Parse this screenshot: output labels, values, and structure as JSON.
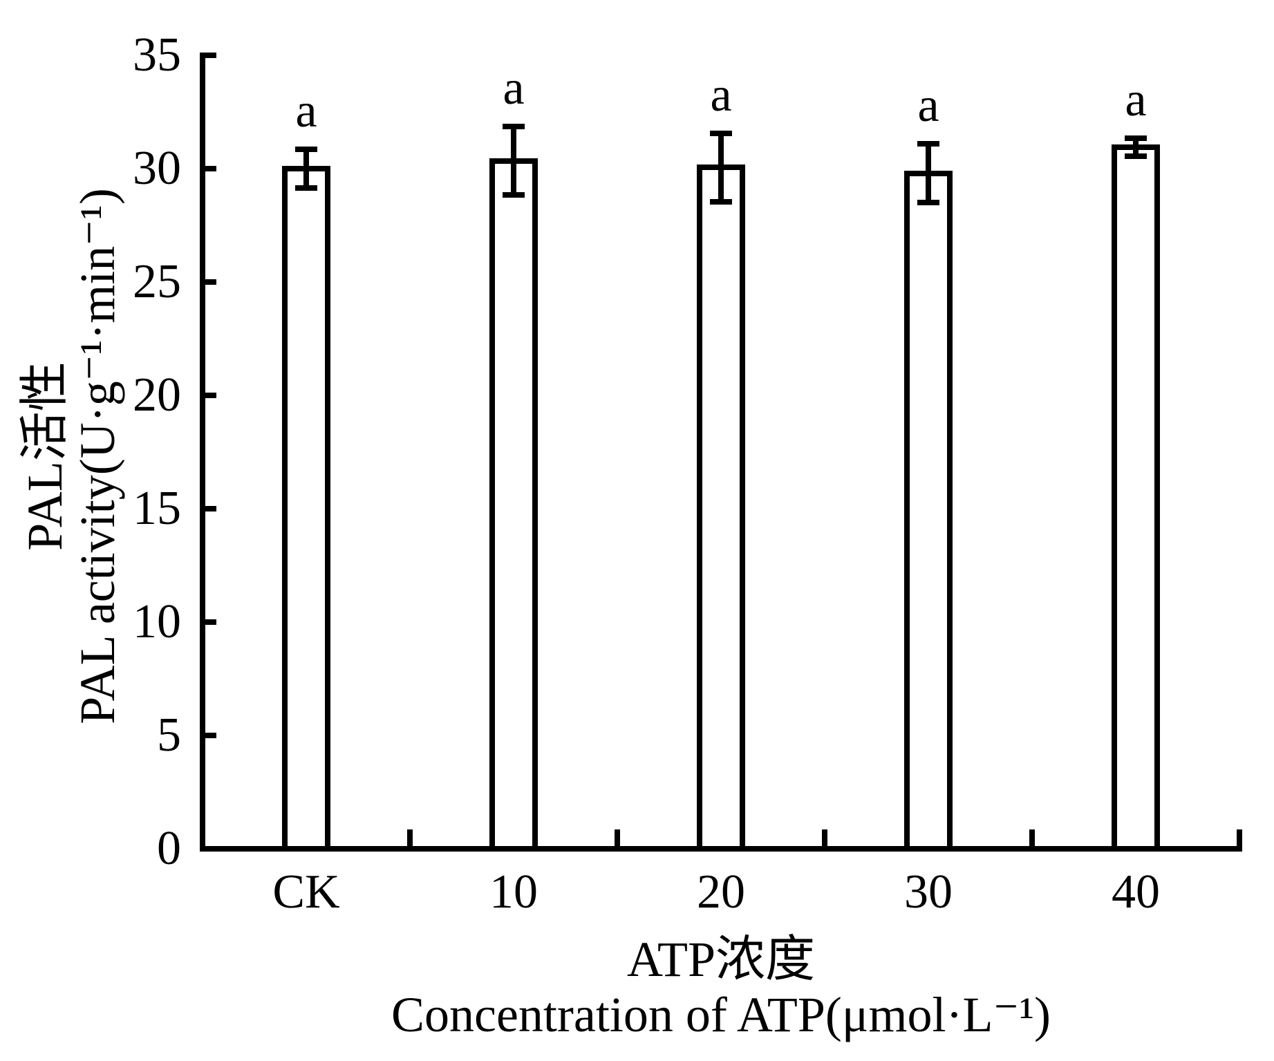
{
  "figure": {
    "background_color": "#ffffff",
    "foreground_color": "#000000",
    "bar_fill_color": "#ffffff"
  },
  "chart_data": {
    "type": "bar",
    "categories": [
      "CK",
      "10",
      "20",
      "30",
      "40"
    ],
    "values": [
      30.0,
      30.35,
      30.05,
      29.8,
      30.95
    ],
    "error_bars": [
      0.85,
      1.5,
      1.5,
      1.3,
      0.4
    ],
    "significance_labels": [
      "a",
      "a",
      "a",
      "a",
      "a"
    ],
    "title": "",
    "ylabel_zh": "PAL活性",
    "ylabel_en": "PAL activity(U·g⁻¹·min⁻¹)",
    "xlabel_zh": "ATP浓度",
    "xlabel_en": "Concentration of ATP(μmol·L⁻¹)",
    "ylim": [
      0,
      35
    ],
    "yticks": [
      0,
      5,
      10,
      15,
      20,
      25,
      30,
      35
    ],
    "grid": false,
    "legend": false,
    "bar_edge_color": "#000000",
    "bar_fill_color": "#ffffff",
    "tick_direction": "in"
  }
}
